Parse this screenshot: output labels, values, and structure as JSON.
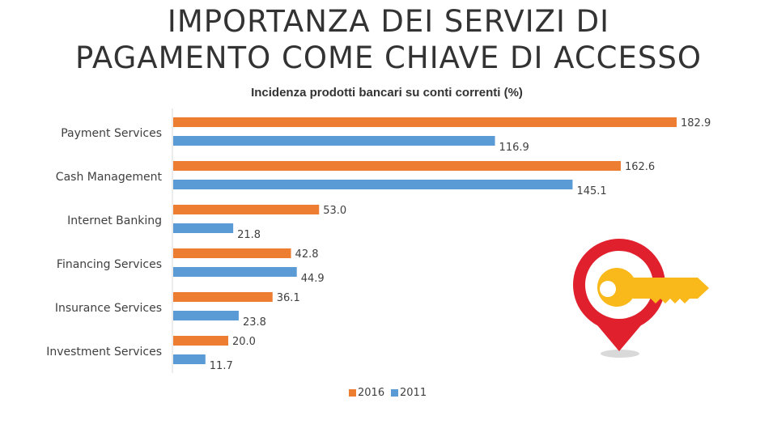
{
  "slide": {
    "title_line1": "IMPORTANZA DEI SERVIZI DI",
    "title_line2": "PAGAMENTO COME CHIAVE DI ACCESSO"
  },
  "chart_data": {
    "type": "bar",
    "orientation": "horizontal",
    "title": "Incidenza prodotti bancari su conti correnti (%)",
    "categories": [
      "Payment Services",
      "Cash Management",
      "Internet Banking",
      "Financing Services",
      "Insurance Services",
      "Investment Services"
    ],
    "series": [
      {
        "name": "2016",
        "color": "#ED7D31",
        "values": [
          182.9,
          162.6,
          53.0,
          42.8,
          36.1,
          20.0
        ]
      },
      {
        "name": "2011",
        "color": "#5B9BD5",
        "values": [
          116.9,
          145.1,
          21.8,
          44.9,
          23.8,
          11.7
        ]
      }
    ],
    "xlim": [
      0,
      190
    ],
    "grid": false,
    "legend": "bottom"
  },
  "illustration": {
    "icon": "key-location-pin-icon",
    "pin_color": "#E0212D",
    "key_color": "#F9B91B"
  }
}
